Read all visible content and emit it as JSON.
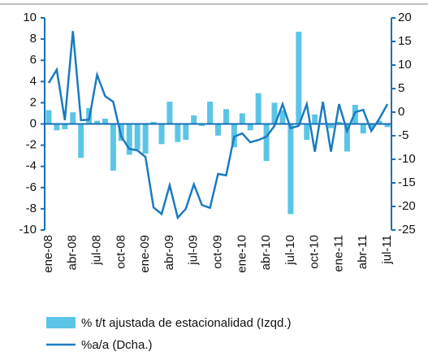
{
  "chart_data": {
    "type": "bar-line",
    "categories": [
      "ene-08",
      null,
      null,
      "abr-08",
      null,
      null,
      "jul-08",
      null,
      null,
      "oct-08",
      null,
      null,
      "ene-09",
      null,
      null,
      "abr-09",
      null,
      null,
      "jul-09",
      null,
      null,
      "oct-09",
      null,
      null,
      "ene-10",
      null,
      null,
      "abr-10",
      null,
      null,
      "jul-10",
      null,
      null,
      "oct-10",
      null,
      null,
      "ene-11",
      null,
      null,
      "abr-11",
      null,
      null,
      "jul-11"
    ],
    "series": [
      {
        "name": "% t/t ajustada de estacionalidad (Izqd.)",
        "color": "#5bc5e8",
        "values": [
          1.3,
          -0.6,
          -0.5,
          1.1,
          -3.2,
          1.5,
          0.3,
          0.5,
          -4.4,
          -1.6,
          -2.9,
          -2.4,
          -2.8,
          0.2,
          -1.9,
          2.1,
          -1.7,
          -1.5,
          0.8,
          -0.2,
          2.1,
          -1.1,
          1.4,
          -2.2,
          1.0,
          -0.6,
          2.9,
          -3.5,
          2.0,
          1.3,
          -8.5,
          8.7,
          -1.5,
          0.9,
          0.1,
          -0.4,
          0.2,
          -2.6,
          1.8,
          -0.9,
          -0.4,
          0.3,
          -0.3
        ]
      },
      {
        "name": "%a/a (Dcha.)",
        "color": "#1a7bbf",
        "axis": "y2",
        "values": [
          6.2,
          9,
          -1.7,
          17.2,
          -1.7,
          -1.6,
          7.9,
          3.4,
          2.2,
          -5.2,
          -7.8,
          -8.1,
          -9.5,
          -20.2,
          -21.6,
          -15.5,
          -22.4,
          -20.5,
          -15.3,
          -19.7,
          -20.3,
          -13.1,
          -13.4,
          -5.2,
          -4.5,
          -6.4,
          -5.9,
          -5.2,
          -2.9,
          1.7,
          -3.4,
          -2.9,
          1.7,
          -8.4,
          2.2,
          -8.4,
          1.7,
          -4,
          0,
          0.5,
          -4,
          -1.4,
          1.7
        ]
      }
    ],
    "ylim": [
      -10,
      10
    ],
    "yticks": [
      -10,
      -8,
      -6,
      -4,
      -2,
      0,
      2,
      4,
      6,
      8,
      10
    ],
    "y2lim": [
      -25,
      20
    ],
    "y2ticks": [
      -25,
      -20,
      -15,
      -10,
      -5,
      0,
      5,
      10,
      15,
      20
    ]
  }
}
